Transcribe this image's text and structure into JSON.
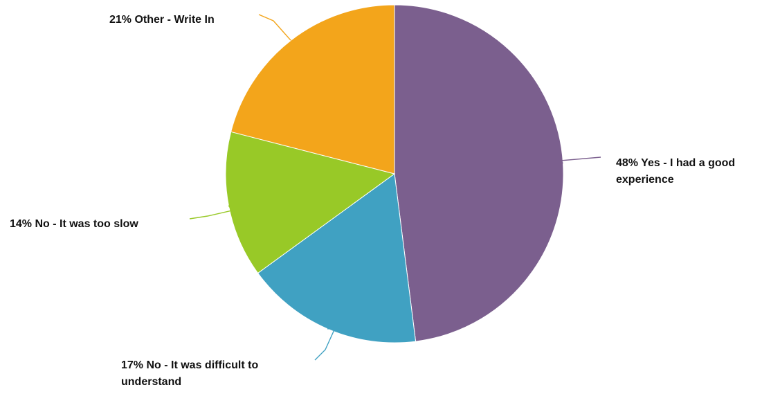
{
  "chart_data": {
    "type": "pie",
    "title": "",
    "slices": [
      {
        "percent_label": "48%",
        "label": "Yes - I had a good experience",
        "lines": [
          "48% Yes - I had a good",
          "experience"
        ],
        "value": 48,
        "color": "#7b5f8e"
      },
      {
        "percent_label": "17%",
        "label": "No - It was difficult to understand",
        "lines": [
          "17% No - It was difficult to",
          "understand"
        ],
        "value": 17,
        "color": "#40a1c2"
      },
      {
        "percent_label": "14%",
        "label": "No - It was too slow",
        "lines": [
          "14% No - It was too slow"
        ],
        "value": 14,
        "color": "#98c927"
      },
      {
        "percent_label": "21%",
        "label": "Other - Write In",
        "lines": [
          "21% Other - Write In"
        ],
        "value": 21,
        "color": "#f3a51b"
      }
    ],
    "start_angle": "12 o'clock",
    "direction": "clockwise",
    "legend": "none (labels beside slices)"
  }
}
